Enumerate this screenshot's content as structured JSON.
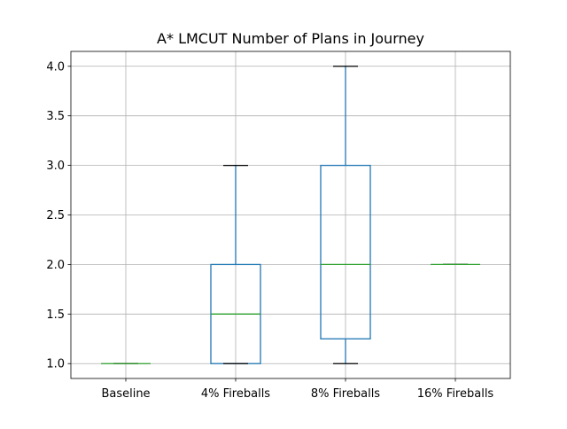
{
  "chart_data": {
    "type": "box",
    "title": "A* LMCUT Number of Plans in Journey",
    "xlabel": "",
    "ylabel": "",
    "categories": [
      "Baseline",
      "4% Fireballs",
      "8% Fireballs",
      "16% Fireballs"
    ],
    "boxes": [
      {
        "name": "Baseline",
        "whisker_low": 1.0,
        "q1": 1.0,
        "median": 1.0,
        "q3": 1.0,
        "whisker_high": 1.0
      },
      {
        "name": "4% Fireballs",
        "whisker_low": 1.0,
        "q1": 1.0,
        "median": 1.5,
        "q3": 2.0,
        "whisker_high": 3.0
      },
      {
        "name": "8% Fireballs",
        "whisker_low": 1.0,
        "q1": 1.25,
        "median": 2.0,
        "q3": 3.0,
        "whisker_high": 4.0
      },
      {
        "name": "16% Fireballs",
        "whisker_low": 2.0,
        "q1": 2.0,
        "median": 2.0,
        "q3": 2.0,
        "whisker_high": 2.0
      }
    ],
    "yticks": [
      "1.0",
      "1.5",
      "2.0",
      "2.5",
      "3.0",
      "3.5",
      "4.0"
    ],
    "ylim": [
      0.85,
      4.15
    ],
    "grid": true,
    "legend": "none",
    "colors": {
      "box": "#1f77b4",
      "median": "#2ca02c",
      "whisker_cap": "#000000",
      "grid": "#b0b0b0",
      "axes": "#000000"
    }
  }
}
